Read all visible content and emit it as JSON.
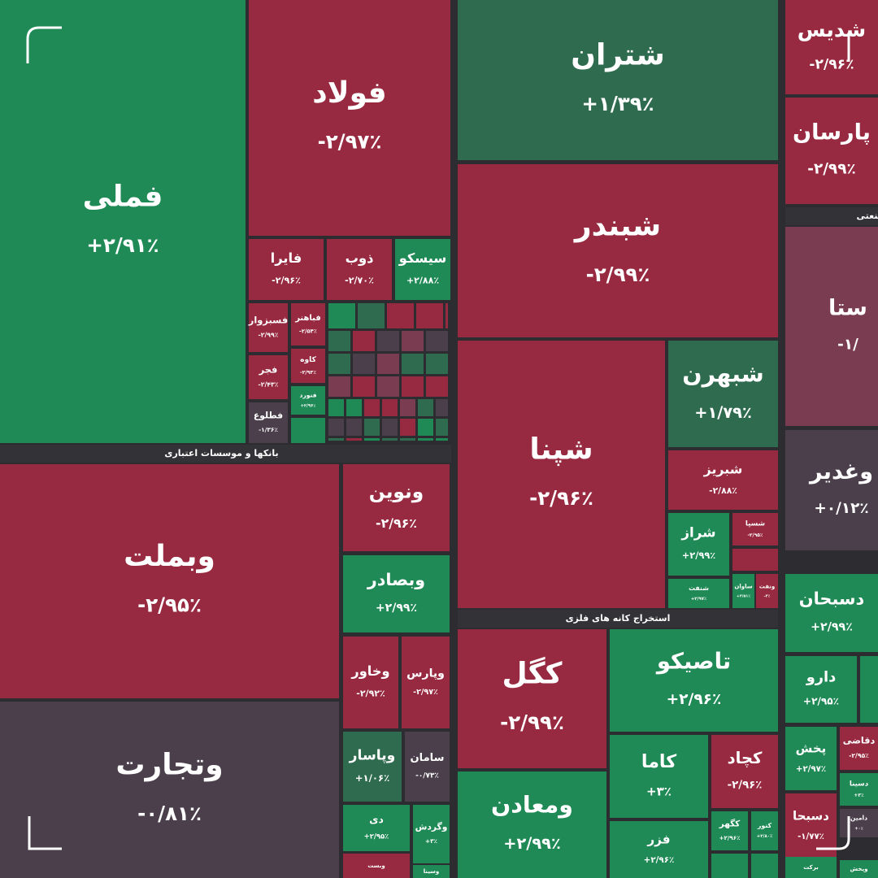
{
  "sectors": [
    "بانکها و موسسات اعتباری",
    "استخراج کانه های فلزی",
    "صنعتی"
  ],
  "tiles": [
    {
      "label": "فملی",
      "change": "+۲/۹۱٪",
      "color": "#1f8a56"
    },
    {
      "label": "فولاد",
      "change": "-۲/۹۷٪",
      "color": "#972a40"
    },
    {
      "label": "شتران",
      "change": "+۱/۳۹٪",
      "color": "#2f6b4f"
    },
    {
      "label": "شبندر",
      "change": "-۲/۹۹٪",
      "color": "#972a40"
    },
    {
      "label": "شپنا",
      "change": "-۲/۹۶٪",
      "color": "#972a40"
    },
    {
      "label": "شبهرن",
      "change": "+۱/۷۹٪",
      "color": "#2f6b4f"
    },
    {
      "label": "شبریز",
      "change": "-۲/۸۸٪",
      "color": "#972a40"
    },
    {
      "label": "شراز",
      "change": "+۲/۹۹٪",
      "color": "#1f8a56"
    },
    {
      "label": "شسپا",
      "change": "-۲/۹۵٪",
      "color": "#972a40"
    },
    {
      "label": "شنفت",
      "change": "+۲/۹۷٪",
      "color": "#1f8a56"
    },
    {
      "label": "ساوان",
      "change": "+۲/۵۱٪",
      "color": "#1f8a56"
    },
    {
      "label": "ونفت",
      "change": "-۳٪",
      "color": "#972a40"
    },
    {
      "label": "شدیس",
      "change": "-۲/۹۶٪",
      "color": "#972a40"
    },
    {
      "label": "پارسان",
      "change": "-۲/۹۹٪",
      "color": "#972a40"
    },
    {
      "label": "ستا",
      "change": "-۱/",
      "color": "#7a3c50"
    },
    {
      "label": "وغدیر",
      "change": "+۰/۱۲٪",
      "color": "#4a3f4a"
    },
    {
      "label": "دسبحان",
      "change": "+۲/۹۹٪",
      "color": "#1f8a56"
    },
    {
      "label": "دارو",
      "change": "+۲/۹۵٪",
      "color": "#1f8a56"
    },
    {
      "label": "پخش",
      "change": "+۲/۹۷٪",
      "color": "#1f8a56"
    },
    {
      "label": "دقاضی",
      "change": "-۲/۹۵٪",
      "color": "#972a40"
    },
    {
      "label": "دسینا",
      "change": "+۳٪",
      "color": "#1f8a56"
    },
    {
      "label": "دسبحا",
      "change": "-۱/۷۷٪",
      "color": "#972a40"
    },
    {
      "label": "دامین",
      "change": "+۰٪",
      "color": "#4a3f4a"
    },
    {
      "label": "برکت",
      "color": "#1f8a56"
    },
    {
      "label": "وپخش",
      "color": "#1f8a56"
    },
    {
      "label": "وبملت",
      "change": "-۲/۹۵٪",
      "color": "#972a40"
    },
    {
      "label": "وتجارت",
      "change": "-۰/۸۱٪",
      "color": "#4a3f4a"
    },
    {
      "label": "ونوین",
      "change": "-۲/۹۶٪",
      "color": "#972a40"
    },
    {
      "label": "وبصادر",
      "change": "+۲/۹۹٪",
      "color": "#1f8a56"
    },
    {
      "label": "وخاور",
      "change": "-۲/۹۲٪",
      "color": "#972a40"
    },
    {
      "label": "وپارس",
      "change": "-۲/۹۷٪",
      "color": "#972a40"
    },
    {
      "label": "وپاسار",
      "change": "+۱/۰۶٪",
      "color": "#2f6b4f"
    },
    {
      "label": "سامان",
      "change": "-۰/۷۳٪",
      "color": "#4a3f4a"
    },
    {
      "label": "دی",
      "change": "+۲/۹۵٪",
      "color": "#1f8a56"
    },
    {
      "label": "وگردش",
      "change": "+۳٪",
      "color": "#1f8a56"
    },
    {
      "label": "وبست",
      "color": "#972a40"
    },
    {
      "label": "وسینا",
      "color": "#1f8a56"
    },
    {
      "label": "کگل",
      "change": "-۲/۹۹٪",
      "color": "#972a40"
    },
    {
      "label": "تاصیکو",
      "change": "+۲/۹۶٪",
      "color": "#1f8a56"
    },
    {
      "label": "ومعادن",
      "change": "+۲/۹۹٪",
      "color": "#1f8a56"
    },
    {
      "label": "کاما",
      "change": "+۳٪",
      "color": "#1f8a56"
    },
    {
      "label": "کچاد",
      "change": "-۲/۹۶٪",
      "color": "#972a40"
    },
    {
      "label": "فزر",
      "change": "+۲/۹۶٪",
      "color": "#1f8a56"
    },
    {
      "label": "کگهر",
      "change": "+۲/۹۶٪",
      "color": "#1f8a56"
    },
    {
      "label": "کنور",
      "change": "+۲/۸۰٪",
      "color": "#1f8a56"
    },
    {
      "label": "فایرا",
      "change": "-۲/۹۶٪",
      "color": "#972a40"
    },
    {
      "label": "ذوب",
      "change": "-۲/۷۰٪",
      "color": "#972a40"
    },
    {
      "label": "سیسکو",
      "change": "+۲/۸۸٪",
      "color": "#1f8a56"
    },
    {
      "label": "فسبزوار",
      "change": "-۲/۹۹٪",
      "color": "#972a40"
    },
    {
      "label": "فباهنر",
      "change": "-۲/۵۴٪",
      "color": "#972a40"
    },
    {
      "label": "فجر",
      "change": "-۲/۴۳٪",
      "color": "#972a40"
    },
    {
      "label": "کاوه",
      "change": "-۲/۹۳٪",
      "color": "#972a40"
    },
    {
      "label": "فنورد",
      "change": "+۲/۹۶٪",
      "color": "#1f8a56"
    },
    {
      "label": "فطلوع",
      "change": "-۱/۳۶٪",
      "color": "#4a3f4a"
    }
  ]
}
